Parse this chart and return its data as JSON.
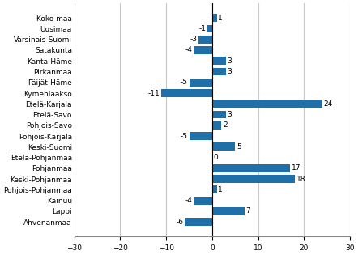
{
  "categories": [
    "Koko maa",
    "Uusimaa",
    "Varsinais-Suomi",
    "Satakunta",
    "Kanta-Häme",
    "Pirkanmaa",
    "Päijät-Häme",
    "Kymenlaakso",
    "Etelä-Karjala",
    "Etelä-Savo",
    "Pohjois-Savo",
    "Pohjois-Karjala",
    "Keski-Suomi",
    "Etelä-Pohjanmaa",
    "Pohjanmaa",
    "Keski-Pohjanmaa",
    "Pohjois-Pohjanmaa",
    "Kainuu",
    "Lappi",
    "Ahvenanmaa"
  ],
  "values": [
    1,
    -1,
    -3,
    -4,
    3,
    3,
    -5,
    -11,
    24,
    3,
    2,
    -5,
    5,
    0,
    17,
    18,
    1,
    -4,
    7,
    -6
  ],
  "bar_color": "#1f6fa8",
  "xlim": [
    -30,
    30
  ],
  "xticks": [
    -30,
    -20,
    -10,
    0,
    10,
    20,
    30
  ],
  "background_color": "#ffffff",
  "grid_color": "#c8c8c8",
  "label_fontsize": 6.5,
  "value_fontsize": 6.5,
  "bar_height": 0.75
}
